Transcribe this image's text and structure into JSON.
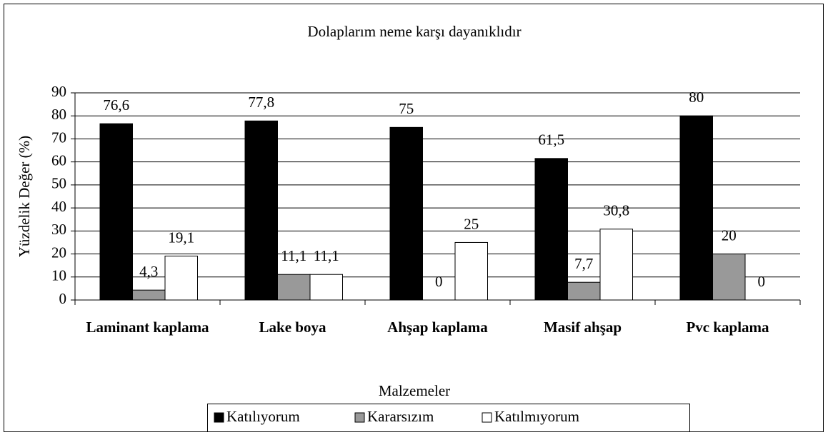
{
  "chart_data": {
    "type": "bar",
    "title": "Dolaplarım neme karşı dayanıklıdır",
    "x_label": "Malzemeler",
    "y_label": "Yüzdelik Değer (%)",
    "categories": [
      "Laminant kaplama",
      "Lake boya",
      "Ahşap kaplama",
      "Masif ahşap",
      "Pvc kaplama"
    ],
    "series": [
      {
        "name": "Katılıyorum",
        "color": "#000000",
        "values": [
          76.6,
          77.8,
          75,
          61.5,
          80
        ],
        "value_labels": [
          "76,6",
          "77,8",
          "75",
          "61,5",
          "80"
        ]
      },
      {
        "name": "Kararsızım",
        "color": "#999999",
        "values": [
          4.3,
          11.1,
          0,
          7.7,
          20
        ],
        "value_labels": [
          "4,3",
          "11,1",
          "0",
          "7,7",
          "20"
        ]
      },
      {
        "name": "Katılmıyorum",
        "color": "#ffffff",
        "values": [
          19.1,
          11.1,
          25,
          30.8,
          0
        ],
        "value_labels": [
          "19,1",
          "11,1",
          "25",
          "30,8",
          "0"
        ]
      }
    ],
    "ylim": [
      0,
      90
    ],
    "yticks": [
      0,
      10,
      20,
      30,
      40,
      50,
      60,
      70,
      80,
      90
    ],
    "grid": true,
    "legend": "bottom"
  }
}
